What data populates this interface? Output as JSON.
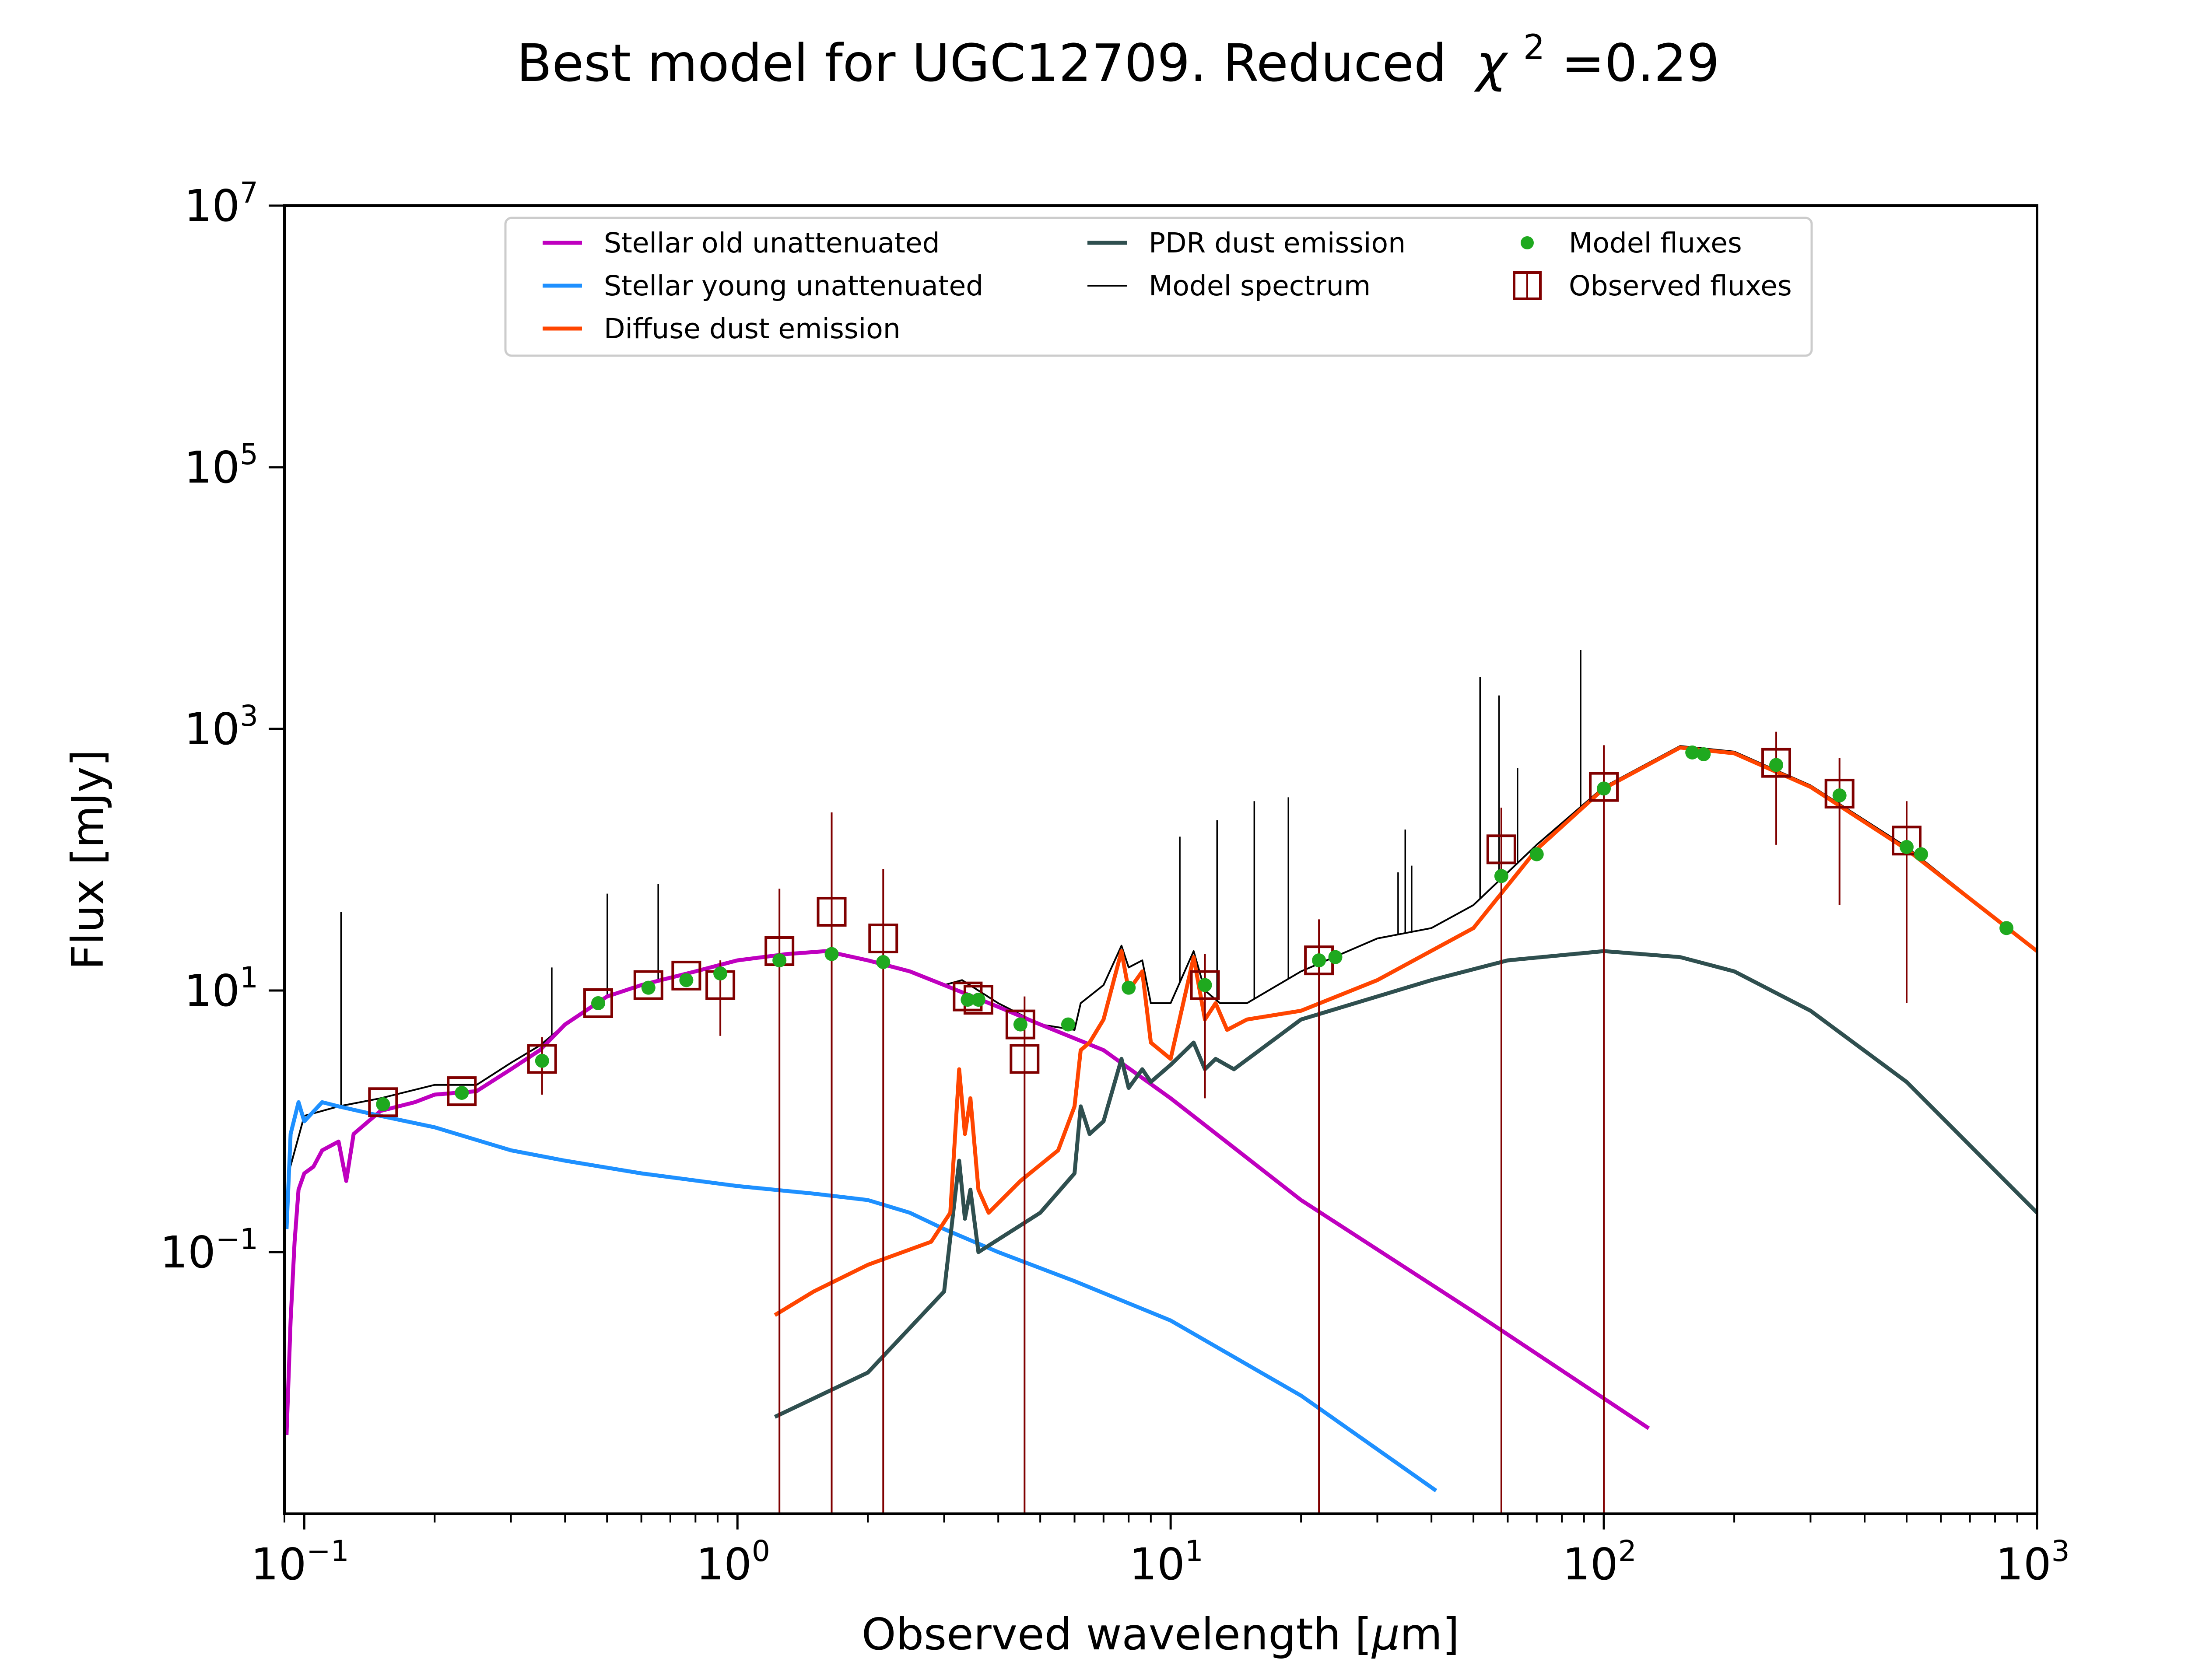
{
  "chart_data": {
    "type": "line",
    "title": "Best model for UGC12709. Reduced",
    "title_chi": "χ",
    "title_chi_exp": "2",
    "title_value": "=0.29",
    "xlabel": "Observed wavelength [",
    "xlabel_mu": "μ",
    "xlabel_unit": "m]",
    "ylabel": "Flux [mJy]",
    "xscale": "log",
    "yscale": "log",
    "xlim": [
      0.09,
      1000
    ],
    "ylim": [
      0.001,
      10000000
    ],
    "x_ticks": [
      {
        "value": 0.1,
        "base": "10",
        "exp": "−1"
      },
      {
        "value": 1,
        "base": "10",
        "exp": "0"
      },
      {
        "value": 10,
        "base": "10",
        "exp": "1"
      },
      {
        "value": 100,
        "base": "10",
        "exp": "2"
      },
      {
        "value": 1000,
        "base": "10",
        "exp": "3"
      }
    ],
    "y_ticks": [
      {
        "value": 0.1,
        "base": "10",
        "exp": "−1"
      },
      {
        "value": 10,
        "base": "10",
        "exp": "1"
      },
      {
        "value": 1000,
        "base": "10",
        "exp": "3"
      },
      {
        "value": 100000,
        "base": "10",
        "exp": "5"
      },
      {
        "value": 10000000,
        "base": "10",
        "exp": "7"
      }
    ],
    "legend_position": "top-center",
    "legend": [
      {
        "label": "Stellar old unattenuated",
        "kind": "line",
        "color": "#bf00bf"
      },
      {
        "label": "Stellar young unattenuated",
        "kind": "line",
        "color": "#1e90ff"
      },
      {
        "label": "Diffuse dust emission",
        "kind": "line",
        "color": "#ff4500"
      },
      {
        "label": "PDR dust emission",
        "kind": "line",
        "color": "#2f4f4f"
      },
      {
        "label": "Model spectrum",
        "kind": "thinline",
        "color": "#000000"
      },
      {
        "label": "Model fluxes",
        "kind": "dot",
        "color": "#1fa91f"
      },
      {
        "label": "Observed fluxes",
        "kind": "square",
        "color": "#800000"
      }
    ],
    "series": [
      {
        "name": "Stellar old unattenuated",
        "color": "#bf00bf",
        "points": [
          [
            0.091,
            0.004
          ],
          [
            0.093,
            0.03
          ],
          [
            0.095,
            0.12
          ],
          [
            0.097,
            0.3
          ],
          [
            0.1,
            0.4
          ],
          [
            0.105,
            0.45
          ],
          [
            0.11,
            0.6
          ],
          [
            0.12,
            0.7
          ],
          [
            0.125,
            0.35
          ],
          [
            0.13,
            0.8
          ],
          [
            0.15,
            1.2
          ],
          [
            0.18,
            1.4
          ],
          [
            0.2,
            1.6
          ],
          [
            0.25,
            1.7
          ],
          [
            0.3,
            2.5
          ],
          [
            0.35,
            3.5
          ],
          [
            0.4,
            5.5
          ],
          [
            0.5,
            9
          ],
          [
            0.6,
            11
          ],
          [
            0.8,
            14
          ],
          [
            1.0,
            17
          ],
          [
            1.3,
            19
          ],
          [
            1.6,
            20
          ],
          [
            2.0,
            17
          ],
          [
            2.5,
            14
          ],
          [
            3.0,
            11
          ],
          [
            4.0,
            7.5
          ],
          [
            5.0,
            5.5
          ],
          [
            7.0,
            3.5
          ],
          [
            10.0,
            1.5
          ],
          [
            20.0,
            0.25
          ],
          [
            50.0,
            0.035
          ],
          [
            127.0,
            0.0045
          ]
        ]
      },
      {
        "name": "Stellar young unattenuated",
        "color": "#1e90ff",
        "points": [
          [
            0.091,
            0.15
          ],
          [
            0.093,
            0.8
          ],
          [
            0.097,
            1.4
          ],
          [
            0.1,
            1.0
          ],
          [
            0.11,
            1.4
          ],
          [
            0.12,
            1.3
          ],
          [
            0.15,
            1.1
          ],
          [
            0.2,
            0.9
          ],
          [
            0.3,
            0.6
          ],
          [
            0.4,
            0.5
          ],
          [
            0.6,
            0.4
          ],
          [
            1.0,
            0.32
          ],
          [
            1.5,
            0.28
          ],
          [
            2.0,
            0.25
          ],
          [
            2.5,
            0.2
          ],
          [
            3.0,
            0.15
          ],
          [
            4.0,
            0.1
          ],
          [
            6.0,
            0.06
          ],
          [
            10.0,
            0.03
          ],
          [
            20.0,
            0.008
          ],
          [
            41.0,
            0.0015
          ]
        ]
      },
      {
        "name": "Diffuse dust emission",
        "color": "#ff4500",
        "points": [
          [
            1.22,
            0.033
          ],
          [
            1.5,
            0.05
          ],
          [
            2.0,
            0.08
          ],
          [
            2.8,
            0.12
          ],
          [
            3.1,
            0.2
          ],
          [
            3.25,
            2.5
          ],
          [
            3.35,
            0.8
          ],
          [
            3.45,
            1.5
          ],
          [
            3.6,
            0.3
          ],
          [
            3.8,
            0.2
          ],
          [
            4.5,
            0.35
          ],
          [
            5.5,
            0.6
          ],
          [
            6.0,
            1.3
          ],
          [
            6.2,
            3.5
          ],
          [
            6.5,
            4.0
          ],
          [
            7.0,
            6.0
          ],
          [
            7.7,
            20.0
          ],
          [
            8.0,
            10.0
          ],
          [
            8.6,
            14.0
          ],
          [
            9.0,
            4.0
          ],
          [
            10.0,
            3.0
          ],
          [
            11.3,
            18.0
          ],
          [
            12.0,
            6.0
          ],
          [
            12.7,
            8.0
          ],
          [
            13.5,
            5.0
          ],
          [
            15.0,
            6.0
          ],
          [
            20.0,
            7.0
          ],
          [
            30.0,
            12.0
          ],
          [
            50.0,
            30.0
          ],
          [
            70.0,
            120.0
          ],
          [
            100.0,
            350.0
          ],
          [
            150.0,
            720.0
          ],
          [
            200.0,
            650.0
          ],
          [
            300.0,
            360.0
          ],
          [
            500.0,
            120.0
          ],
          [
            1000.0,
            20.0
          ]
        ]
      },
      {
        "name": "PDR dust emission",
        "color": "#2f4f4f",
        "points": [
          [
            1.22,
            0.0055
          ],
          [
            2.0,
            0.012
          ],
          [
            3.0,
            0.05
          ],
          [
            3.25,
            0.5
          ],
          [
            3.35,
            0.18
          ],
          [
            3.45,
            0.3
          ],
          [
            3.6,
            0.1
          ],
          [
            5.0,
            0.2
          ],
          [
            6.0,
            0.4
          ],
          [
            6.2,
            1.3
          ],
          [
            6.5,
            0.8
          ],
          [
            7.0,
            1.0
          ],
          [
            7.7,
            3.0
          ],
          [
            8.0,
            1.8
          ],
          [
            8.6,
            2.5
          ],
          [
            9.0,
            2.0
          ],
          [
            10.0,
            2.7
          ],
          [
            11.3,
            4.0
          ],
          [
            12.0,
            2.5
          ],
          [
            12.7,
            3.0
          ],
          [
            14.0,
            2.5
          ],
          [
            20.0,
            6.0
          ],
          [
            40.0,
            12.0
          ],
          [
            60.0,
            17.0
          ],
          [
            100.0,
            20.0
          ],
          [
            150.0,
            18.0
          ],
          [
            200.0,
            14.0
          ],
          [
            300.0,
            7.0
          ],
          [
            500.0,
            2.0
          ],
          [
            1000.0,
            0.2
          ]
        ]
      },
      {
        "name": "Model spectrum",
        "color": "#000000",
        "points": [
          [
            0.092,
            0.4
          ],
          [
            0.1,
            1.1
          ],
          [
            0.12,
            1.3
          ],
          [
            0.15,
            1.5
          ],
          [
            0.2,
            1.9
          ],
          [
            0.25,
            1.9
          ],
          [
            0.3,
            2.8
          ],
          [
            0.35,
            3.8
          ],
          [
            0.4,
            5.5
          ],
          [
            0.5,
            9.0
          ],
          [
            0.6,
            11.0
          ],
          [
            0.8,
            14.0
          ],
          [
            1.0,
            17.0
          ],
          [
            1.3,
            19.0
          ],
          [
            1.6,
            20.0
          ],
          [
            2.0,
            17.0
          ],
          [
            2.5,
            14.0
          ],
          [
            3.0,
            11.0
          ],
          [
            3.3,
            12.0
          ],
          [
            4.0,
            8.0
          ],
          [
            5.0,
            5.5
          ],
          [
            6.0,
            5.0
          ],
          [
            6.2,
            8.0
          ],
          [
            7.0,
            11.0
          ],
          [
            7.7,
            22.0
          ],
          [
            8.0,
            15.0
          ],
          [
            8.6,
            17.0
          ],
          [
            9.0,
            8.0
          ],
          [
            10.0,
            8.0
          ],
          [
            11.3,
            20.0
          ],
          [
            12.0,
            10.0
          ],
          [
            13.0,
            8.0
          ],
          [
            15.0,
            8.0
          ],
          [
            20.0,
            14.0
          ],
          [
            30.0,
            25.0
          ],
          [
            40.0,
            30.0
          ],
          [
            50.0,
            45.0
          ],
          [
            70.0,
            130.0
          ],
          [
            100.0,
            360.0
          ],
          [
            150.0,
            740.0
          ],
          [
            200.0,
            670.0
          ],
          [
            300.0,
            370.0
          ],
          [
            500.0,
            125.0
          ],
          [
            1000.0,
            20.0
          ]
        ]
      }
    ],
    "emission_lines": [
      [
        0.1216,
        40
      ],
      [
        0.3727,
        15
      ],
      [
        0.5007,
        55
      ],
      [
        0.6563,
        65
      ],
      [
        10.5,
        150
      ],
      [
        12.8,
        200
      ],
      [
        15.6,
        280
      ],
      [
        18.7,
        300
      ],
      [
        33.5,
        80
      ],
      [
        34.8,
        170
      ],
      [
        36.0,
        90
      ],
      [
        51.8,
        2500
      ],
      [
        57.3,
        1800
      ],
      [
        63.2,
        500
      ],
      [
        88.4,
        4000
      ]
    ],
    "model_fluxes": [
      [
        0.152,
        1.35
      ],
      [
        0.231,
        1.65
      ],
      [
        0.354,
        2.9
      ],
      [
        0.477,
        8.0
      ],
      [
        0.623,
        10.5
      ],
      [
        0.762,
        12.0
      ],
      [
        0.913,
        13.5
      ],
      [
        1.25,
        17.0
      ],
      [
        1.65,
        19.0
      ],
      [
        2.17,
        16.5
      ],
      [
        3.4,
        8.5
      ],
      [
        3.6,
        8.5
      ],
      [
        4.5,
        5.5
      ],
      [
        5.8,
        5.5
      ],
      [
        8.0,
        10.5
      ],
      [
        12.0,
        11.0
      ],
      [
        22.0,
        17.0
      ],
      [
        24.0,
        18.0
      ],
      [
        58.0,
        75.0
      ],
      [
        70.0,
        110.0
      ],
      [
        100.0,
        350.0
      ],
      [
        160.0,
        660.0
      ],
      [
        170.0,
        640.0
      ],
      [
        250.0,
        530.0
      ],
      [
        350.0,
        310.0
      ],
      [
        500.0,
        125.0
      ],
      [
        540.0,
        110.0
      ],
      [
        850.0,
        30.0
      ]
    ],
    "observed_fluxes": [
      {
        "x": 0.152,
        "y": 1.4,
        "ylo": null,
        "yhi": null
      },
      {
        "x": 0.231,
        "y": 1.7,
        "ylo": null,
        "yhi": null
      },
      {
        "x": 0.354,
        "y": 3.0,
        "ylo": 1.6,
        "yhi": 4.4
      },
      {
        "x": 0.477,
        "y": 8.0,
        "ylo": null,
        "yhi": null
      },
      {
        "x": 0.623,
        "y": 11.0,
        "ylo": null,
        "yhi": null
      },
      {
        "x": 0.762,
        "y": 13.0,
        "ylo": null,
        "yhi": null
      },
      {
        "x": 0.913,
        "y": 11.0,
        "ylo": 4.5,
        "yhi": 17.0
      },
      {
        "x": 1.25,
        "y": 20.0,
        "ylo": 0.001,
        "yhi": 60.0
      },
      {
        "x": 1.65,
        "y": 40.0,
        "ylo": 0.001,
        "yhi": 230.0
      },
      {
        "x": 2.17,
        "y": 25.0,
        "ylo": 0.001,
        "yhi": 85.0
      },
      {
        "x": 3.4,
        "y": 9.0,
        "ylo": null,
        "yhi": null
      },
      {
        "x": 3.6,
        "y": 8.5,
        "ylo": null,
        "yhi": null
      },
      {
        "x": 4.5,
        "y": 5.5,
        "ylo": null,
        "yhi": null
      },
      {
        "x": 4.6,
        "y": 3.0,
        "ylo": 0.001,
        "yhi": 9.0
      },
      {
        "x": 12.0,
        "y": 11.0,
        "ylo": 1.5,
        "yhi": 19.0
      },
      {
        "x": 22.0,
        "y": 17.0,
        "ylo": 0.001,
        "yhi": 35.0
      },
      {
        "x": 58.0,
        "y": 120.0,
        "ylo": 0.001,
        "yhi": 250.0
      },
      {
        "x": 100.0,
        "y": 360.0,
        "ylo": 0.001,
        "yhi": 750.0
      },
      {
        "x": 250.0,
        "y": 550.0,
        "ylo": 130.0,
        "yhi": 950.0
      },
      {
        "x": 350.0,
        "y": 320.0,
        "ylo": 45.0,
        "yhi": 600.0
      },
      {
        "x": 500.0,
        "y": 140.0,
        "ylo": 8.0,
        "yhi": 280.0
      }
    ]
  }
}
